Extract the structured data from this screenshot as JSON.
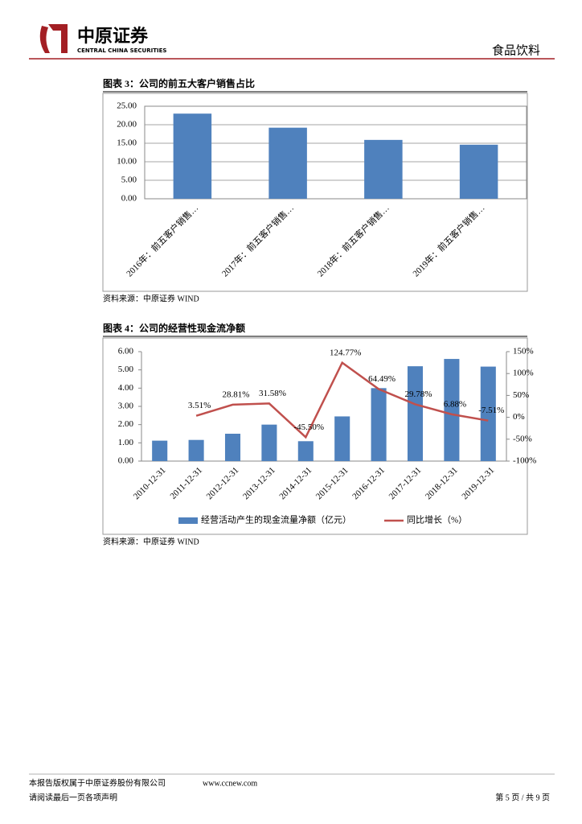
{
  "header": {
    "logo_cn": "中原证券",
    "logo_en": "CENTRAL CHINA SECURITIES",
    "section": "食品饮料"
  },
  "chart_data": [
    {
      "type": "bar",
      "title": "图表 3：公司的前五大客户销售占比",
      "source": "资料来源：中原证券 WIND",
      "categories": [
        "2016年：前五客户销售…",
        "2017年：前五客户销售…",
        "2018年：前五客户销售…",
        "2019年：前五客户销售…"
      ],
      "series": [
        {
          "color": "#4f81bd",
          "values": [
            23.0,
            19.2,
            15.9,
            14.6
          ]
        }
      ],
      "ylim": [
        0,
        25
      ],
      "yticks": [
        {
          "value": 0,
          "label": "0.00"
        },
        {
          "value": 5,
          "label": "5.00"
        },
        {
          "value": 10,
          "label": "10.00"
        },
        {
          "value": 15,
          "label": "15.00"
        },
        {
          "value": 20,
          "label": "20.00"
        },
        {
          "value": 25,
          "label": "25.00"
        }
      ],
      "grid": true
    },
    {
      "type": "combo",
      "title": "图表 4：公司的经营性现金流净额",
      "source": "资料来源：中原证券 WIND",
      "categories": [
        "2010-12-31",
        "2011-12-31",
        "2012-12-31",
        "2013-12-31",
        "2014-12-31",
        "2015-12-31",
        "2016-12-31",
        "2017-12-31",
        "2018-12-31",
        "2019-12-31"
      ],
      "series": [
        {
          "name": "经营活动产生的现金流量净额（亿元）",
          "type": "bar",
          "color": "#4f81bd",
          "values": [
            1.12,
            1.16,
            1.5,
            2.0,
            1.09,
            2.45,
            4.0,
            5.2,
            5.6,
            5.18
          ]
        },
        {
          "name": "同比增长（%）",
          "type": "line",
          "axis": "y2",
          "color": "#c0504d",
          "values": [
            null,
            3.51,
            28.81,
            31.58,
            -45.5,
            124.77,
            64.49,
            29.78,
            6.88,
            -7.51
          ],
          "value_labels": [
            null,
            "3.51%",
            "28.81%",
            "31.58%",
            "-45.50%",
            "124.77%",
            "64.49%",
            "29.78%",
            "6.88%",
            "-7.51%"
          ]
        }
      ],
      "ylim": [
        0,
        6
      ],
      "yticks": [
        {
          "value": 0,
          "label": "0.00"
        },
        {
          "value": 1,
          "label": "1.00"
        },
        {
          "value": 2,
          "label": "2.00"
        },
        {
          "value": 3,
          "label": "3.00"
        },
        {
          "value": 4,
          "label": "4.00"
        },
        {
          "value": 5,
          "label": "5.00"
        },
        {
          "value": 6,
          "label": "6.00"
        }
      ],
      "y2lim": [
        -100,
        150
      ],
      "y2ticks": [
        {
          "value": -100,
          "label": "-100%"
        },
        {
          "value": -50,
          "label": "-50%"
        },
        {
          "value": 0,
          "label": "0%"
        },
        {
          "value": 50,
          "label": "50%"
        },
        {
          "value": 100,
          "label": "100%"
        },
        {
          "value": 150,
          "label": "150%"
        }
      ],
      "grid": false,
      "legend": "bottom"
    }
  ],
  "footer": {
    "copyright": "本报告版权属于中原证券股份有限公司",
    "website": "www.ccnew.com",
    "notice": "请阅读最后一页各项声明",
    "page": "第 5 页 / 共 9 页"
  }
}
